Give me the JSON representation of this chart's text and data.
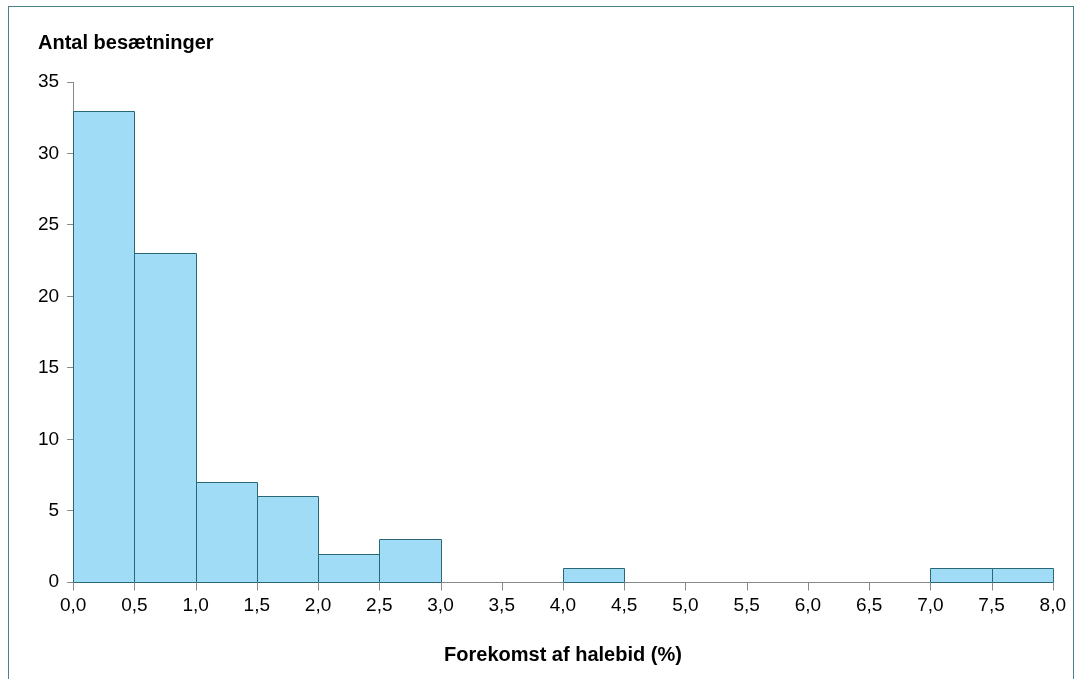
{
  "chart_data": {
    "type": "histogram",
    "xlabel": "Forekomst af halebid (%)",
    "ylabel": "Antal besætninger",
    "bins": [
      0,
      0.5,
      1,
      1.5,
      2,
      2.5,
      3,
      3.5,
      4,
      4.5,
      5,
      5.5,
      6,
      6.5,
      7,
      7.5,
      8
    ],
    "values": [
      33,
      23,
      7,
      6,
      2,
      3,
      0,
      0,
      1,
      0,
      0,
      0,
      0,
      0,
      1,
      1
    ],
    "color": "#a0dcf5",
    "xlim": [
      0,
      8
    ],
    "xticks": [
      {
        "value": 0,
        "label": "0,0"
      },
      {
        "value": 0.5,
        "label": "0,5"
      },
      {
        "value": 1,
        "label": "1,0"
      },
      {
        "value": 1.5,
        "label": "1,5"
      },
      {
        "value": 2,
        "label": "2,0"
      },
      {
        "value": 2.5,
        "label": "2,5"
      },
      {
        "value": 3,
        "label": "3,0"
      },
      {
        "value": 3.5,
        "label": "3,5"
      },
      {
        "value": 4,
        "label": "4,0"
      },
      {
        "value": 4.5,
        "label": "4,5"
      },
      {
        "value": 5,
        "label": "5,0"
      },
      {
        "value": 5.5,
        "label": "5,5"
      },
      {
        "value": 6,
        "label": "6,0"
      },
      {
        "value": 6.5,
        "label": "6,5"
      },
      {
        "value": 7,
        "label": "7,0"
      },
      {
        "value": 7.5,
        "label": "7,5"
      },
      {
        "value": 8,
        "label": "8,0"
      }
    ],
    "ylim": [
      0,
      35
    ],
    "yticks": [
      0,
      5,
      10,
      15,
      20,
      25,
      30,
      35
    ]
  }
}
